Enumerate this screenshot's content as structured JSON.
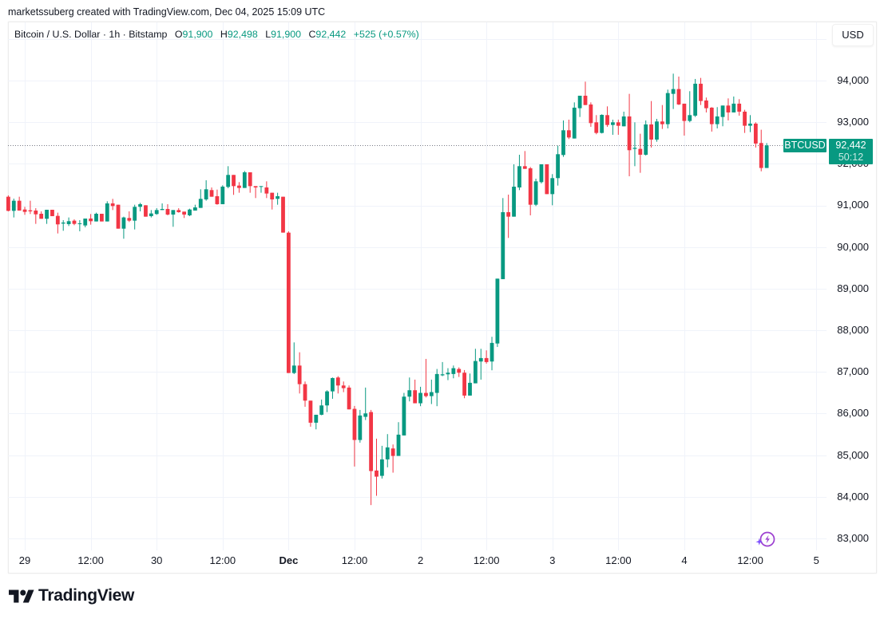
{
  "attribution": "marketssuberg created with TradingView.com, Dec 04, 2025 15:09 UTC",
  "legend": {
    "title": "Bitcoin / U.S. Dollar · 1h · Bitstamp",
    "open_label": "O",
    "open": "91,900",
    "high_label": "H",
    "high": "92,498",
    "low_label": "L",
    "low": "91,900",
    "close_label": "C",
    "close": "92,442",
    "change": "+525 (+0.57%)"
  },
  "currency_button": "USD",
  "price_axis": {
    "labels": [
      "94,000",
      "93,000",
      "92,000",
      "91,000",
      "90,000",
      "89,000",
      "88,000",
      "87,000",
      "86,000",
      "85,000",
      "84,000",
      "83,000"
    ]
  },
  "time_axis": {
    "labels": [
      "29",
      "12:00",
      "30",
      "12:00",
      "Dec",
      "12:00",
      "2",
      "12:00",
      "3",
      "12:00",
      "4",
      "12:00",
      "5"
    ]
  },
  "last_price": {
    "symbol_tag": "BTCUSD",
    "price": "92,442",
    "countdown": "50:12"
  },
  "branding": {
    "logo_text": "TradingView"
  },
  "colors": {
    "up": "#089981",
    "down": "#F23645",
    "text": "#131722",
    "grid": "#f0f3fa",
    "badge": "#9c3fd0"
  },
  "chart_data": {
    "type": "candlestick",
    "title": "Bitcoin / U.S. Dollar · 1h · Bitstamp",
    "symbol": "BTCUSD",
    "interval": "1h",
    "xlabel": "",
    "ylabel": "USD",
    "x_ticks": [
      "29",
      "12:00",
      "30",
      "12:00",
      "Dec",
      "12:00",
      "2",
      "12:00",
      "3",
      "12:00",
      "4",
      "12:00",
      "5"
    ],
    "y_ticks": [
      83000,
      84000,
      85000,
      86000,
      87000,
      88000,
      89000,
      90000,
      91000,
      92000,
      93000,
      94000
    ],
    "grid_y": [
      83000,
      84000,
      85000,
      86000,
      87000,
      88000,
      89000,
      90000,
      91000,
      92000,
      93000,
      94000,
      95000
    ],
    "ylim": [
      82700,
      95500
    ],
    "grid": true,
    "last_price": 92442,
    "fields": [
      "open",
      "high",
      "low",
      "close"
    ],
    "candles": [
      [
        91209,
        91241,
        90858,
        90870
      ],
      [
        90870,
        91164,
        90711,
        91113
      ],
      [
        91113,
        91209,
        90877,
        90877
      ],
      [
        90902,
        90966,
        90775,
        90845
      ],
      [
        90883,
        91113,
        90794,
        90858
      ],
      [
        90877,
        90934,
        90557,
        90787
      ],
      [
        90800,
        90858,
        90679,
        90679
      ],
      [
        90679,
        90896,
        90557,
        90896
      ],
      [
        90896,
        90896,
        90743,
        90743
      ],
      [
        90749,
        90826,
        90327,
        90545
      ],
      [
        90564,
        90647,
        90391,
        90589
      ],
      [
        90551,
        90711,
        90506,
        90621
      ],
      [
        90634,
        90666,
        90525,
        90557
      ],
      [
        90551,
        90647,
        90379,
        90570
      ],
      [
        90519,
        90685,
        90474,
        90685
      ],
      [
        90685,
        90794,
        90538,
        90621
      ],
      [
        90615,
        90826,
        90615,
        90800
      ],
      [
        90800,
        90800,
        90615,
        90615
      ],
      [
        90615,
        91100,
        90615,
        91049
      ],
      [
        91049,
        91158,
        90889,
        90985
      ],
      [
        91017,
        91017,
        90442,
        90442
      ],
      [
        90442,
        90730,
        90200,
        90711
      ],
      [
        90698,
        90858,
        90602,
        90634
      ],
      [
        90634,
        91017,
        90423,
        90966
      ],
      [
        90966,
        91062,
        90858,
        91030
      ],
      [
        91004,
        91004,
        90730,
        90730
      ],
      [
        90743,
        90889,
        90711,
        90807
      ],
      [
        90794,
        90934,
        90775,
        90889
      ],
      [
        90889,
        91049,
        90889,
        90915
      ],
      [
        90915,
        91030,
        90762,
        90781
      ],
      [
        90781,
        90889,
        90487,
        90889
      ],
      [
        90889,
        90934,
        90826,
        90838
      ],
      [
        90851,
        90851,
        90698,
        90781
      ],
      [
        90762,
        90921,
        90743,
        90902
      ],
      [
        90877,
        91017,
        90877,
        90953
      ],
      [
        90941,
        91388,
        90941,
        91158
      ],
      [
        91145,
        91605,
        91113,
        91388
      ],
      [
        91369,
        91432,
        91209,
        91209
      ],
      [
        91222,
        91381,
        91017,
        91030
      ],
      [
        91030,
        91484,
        91030,
        91452
      ],
      [
        91445,
        91943,
        91413,
        91733
      ],
      [
        91733,
        91733,
        91254,
        91464
      ],
      [
        91477,
        91560,
        91305,
        91420
      ],
      [
        91420,
        91828,
        91420,
        91796
      ],
      [
        91796,
        91796,
        91305,
        91464
      ],
      [
        91464,
        91464,
        91177,
        91432
      ],
      [
        91445,
        91464,
        91305,
        91464
      ],
      [
        91432,
        91579,
        91177,
        91286
      ],
      [
        91305,
        91305,
        90902,
        91145
      ],
      [
        91158,
        91305,
        91017,
        91222
      ],
      [
        91209,
        91209,
        90347,
        90347
      ],
      [
        90346,
        90378,
        86974,
        86974
      ],
      [
        86974,
        87709,
        86949,
        87153
      ],
      [
        87153,
        87472,
        86482,
        86706
      ],
      [
        86706,
        86770,
        86163,
        86310
      ],
      [
        86310,
        86310,
        85684,
        85780
      ],
      [
        85780,
        85971,
        85620,
        85971
      ],
      [
        85971,
        86336,
        85959,
        86195
      ],
      [
        86195,
        86559,
        86035,
        86533
      ],
      [
        86533,
        86866,
        86355,
        86853
      ],
      [
        86866,
        86898,
        86482,
        86674
      ],
      [
        86674,
        86770,
        86514,
        86610
      ],
      [
        86624,
        86675,
        86100,
        86100
      ],
      [
        86113,
        86183,
        84727,
        85365
      ],
      [
        85365,
        86087,
        85301,
        85953
      ],
      [
        85921,
        86624,
        85844,
        86004
      ],
      [
        86036,
        86087,
        83801,
        84618
      ],
      [
        84631,
        85397,
        84024,
        84484
      ],
      [
        84503,
        85225,
        84439,
        84899
      ],
      [
        84899,
        85506,
        84708,
        85187
      ],
      [
        85161,
        85257,
        84580,
        84982
      ],
      [
        84982,
        85793,
        84982,
        85493
      ],
      [
        85474,
        86496,
        85474,
        86406
      ],
      [
        86406,
        86866,
        86292,
        86560
      ],
      [
        86560,
        86815,
        86247,
        86247
      ],
      [
        86247,
        86643,
        86177,
        86496
      ],
      [
        86496,
        87313,
        86387,
        86419
      ],
      [
        86419,
        86815,
        86228,
        86515
      ],
      [
        86496,
        87071,
        86177,
        86950
      ],
      [
        86918,
        87237,
        86898,
        86943
      ],
      [
        86943,
        87090,
        86803,
        86981
      ],
      [
        86950,
        87154,
        86847,
        87090
      ],
      [
        87071,
        87109,
        86879,
        86981
      ],
      [
        86981,
        87045,
        86368,
        86432
      ],
      [
        86432,
        86962,
        86432,
        86739
      ],
      [
        86726,
        87556,
        86726,
        87262
      ],
      [
        87250,
        87556,
        86815,
        87333
      ],
      [
        87333,
        87518,
        87199,
        87237
      ],
      [
        87250,
        87844,
        87039,
        87697
      ],
      [
        87683,
        89241,
        87600,
        89241
      ],
      [
        89229,
        91177,
        89229,
        90838
      ],
      [
        90838,
        91260,
        90219,
        90730
      ],
      [
        90730,
        91988,
        90730,
        91451
      ],
      [
        91432,
        92218,
        91368,
        91943
      ],
      [
        91943,
        92307,
        91879,
        91879
      ],
      [
        91892,
        91924,
        90762,
        91017
      ],
      [
        91017,
        91643,
        90985,
        91579
      ],
      [
        91560,
        91988,
        91528,
        91988
      ],
      [
        91988,
        91988,
        91272,
        91272
      ],
      [
        91272,
        91752,
        91004,
        91656
      ],
      [
        91656,
        92435,
        91477,
        92231
      ],
      [
        92212,
        93042,
        92167,
        92806
      ],
      [
        92806,
        93061,
        92595,
        92633
      ],
      [
        92608,
        93476,
        92608,
        93349
      ],
      [
        93336,
        93636,
        93125,
        93636
      ],
      [
        93636,
        93974,
        93412,
        93412
      ],
      [
        93425,
        93476,
        92889,
        92978
      ],
      [
        92997,
        93170,
        92710,
        92742
      ],
      [
        92742,
        93189,
        92729,
        93176
      ],
      [
        93170,
        93380,
        92889,
        92933
      ],
      [
        92933,
        93061,
        92697,
        92997
      ],
      [
        92997,
        93061,
        92697,
        92914
      ],
      [
        92901,
        93253,
        92901,
        93138
      ],
      [
        93138,
        93681,
        91701,
        92327
      ],
      [
        92359,
        92997,
        91943,
        92384
      ],
      [
        92359,
        92723,
        91784,
        92218
      ],
      [
        92218,
        93042,
        92199,
        92946
      ],
      [
        92946,
        93508,
        92391,
        92582
      ],
      [
        92582,
        93080,
        92531,
        93017
      ],
      [
        93017,
        93412,
        92838,
        92952
      ],
      [
        92952,
        93783,
        92851,
        93700
      ],
      [
        93681,
        94166,
        93317,
        93796
      ],
      [
        93796,
        94096,
        93413,
        93426
      ],
      [
        93445,
        93445,
        92678,
        93030
      ],
      [
        93030,
        93745,
        92998,
        93170
      ],
      [
        93157,
        94039,
        93125,
        93924
      ],
      [
        93924,
        94064,
        93413,
        93509
      ],
      [
        93521,
        93592,
        93234,
        93336
      ],
      [
        93349,
        93362,
        92774,
        92953
      ],
      [
        92953,
        93362,
        92851,
        93138
      ],
      [
        93125,
        93400,
        92902,
        93400
      ],
      [
        93400,
        93572,
        93042,
        93234
      ],
      [
        93234,
        93617,
        93234,
        93445
      ],
      [
        93445,
        93553,
        93157,
        93253
      ],
      [
        93253,
        93298,
        92742,
        92915
      ],
      [
        92915,
        93170,
        92761,
        92966
      ],
      [
        92966,
        92998,
        92391,
        92487
      ],
      [
        92500,
        92819,
        91820,
        91900
      ],
      [
        91900,
        92498,
        91900,
        92442
      ]
    ]
  }
}
